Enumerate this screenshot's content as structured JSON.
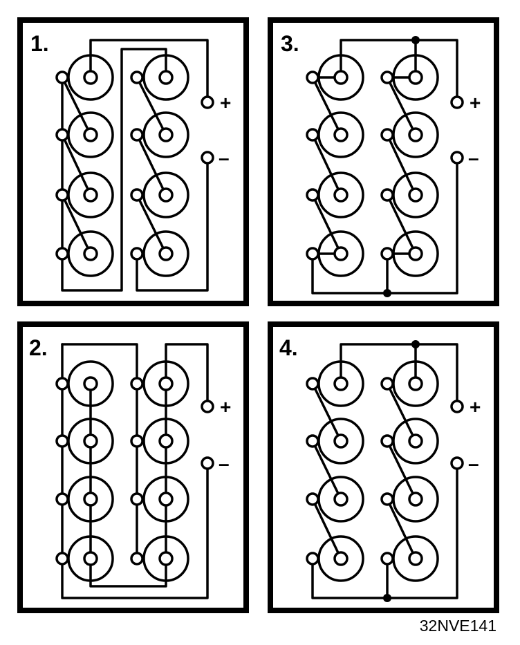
{
  "figure_code": "32NVE141",
  "colors": {
    "line": "#000000",
    "background": "#ffffff"
  },
  "panels": [
    {
      "label": "1.",
      "plus": "+",
      "minus": "–",
      "variant": "series"
    },
    {
      "label": "2.",
      "plus": "+",
      "minus": "–",
      "variant": "parallel"
    },
    {
      "label": "3.",
      "plus": "+",
      "minus": "–",
      "variant": "series-parallel-a"
    },
    {
      "label": "4.",
      "plus": "+",
      "minus": "–",
      "variant": "series-parallel-b"
    }
  ]
}
